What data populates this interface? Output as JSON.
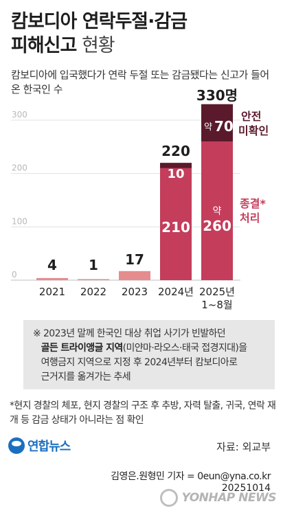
{
  "header": {
    "title_line1": "캄보디아 연락두절·감금",
    "title_line2_bold": "피해신고",
    "title_line2_light": " 현황",
    "subtitle": "캄보디아에 입국했다가 연락 두절 또는 감금됐다는 신고가 들어온 한국인 수"
  },
  "chart_data": {
    "type": "bar",
    "categories": [
      "2021",
      "2022",
      "2023",
      "2024년",
      "2025년"
    ],
    "category_sublabels": [
      "",
      "",
      "",
      "",
      "1~8월"
    ],
    "totals": [
      4,
      1,
      17,
      220,
      330
    ],
    "total_labels": [
      "4",
      "1",
      "17",
      "220",
      "330명"
    ],
    "series": [
      {
        "name": "종결* 처리",
        "values": [
          4,
          1,
          17,
          210,
          260
        ],
        "labels": [
          "",
          "",
          "",
          "210",
          "약 260"
        ],
        "color": "#c43d5b"
      },
      {
        "name": "안전 미확인",
        "values": [
          0,
          0,
          0,
          10,
          70
        ],
        "labels": [
          "",
          "",
          "",
          "10",
          "약 70"
        ],
        "color": "#5a1a2c"
      }
    ],
    "ylim": [
      0,
      330
    ],
    "yticks": [
      0,
      100,
      200,
      300
    ],
    "legend": [
      "안전 미확인",
      "종결* 처리"
    ],
    "grid": true
  },
  "note": {
    "line1": "※ 2023년 말께 한국인 대상 취업 사기가 빈발하던",
    "line2_bold": "골든 트라이앵글 지역",
    "line2_rest": "(미얀마·라오스·태국 접경지대)을",
    "line3": "여행금지 지역으로 지정 후 2024년부터 캄보디아로",
    "line4": "근거지를 옮겨가는 추세"
  },
  "footnote": "*현지 경찰의 체포, 현지 경찰의 구조 후 추방, 자력 탈출, 귀국, 연락 재개 등 감금 상태가 아니라는 점 확인",
  "footer": {
    "logo": "연합뉴스",
    "source": "자료: 외교부",
    "byline": "김영은.원형민 기자 = 0eun@yna.co.kr",
    "date": "20251014",
    "watermark": "YONHAP NEWS"
  }
}
